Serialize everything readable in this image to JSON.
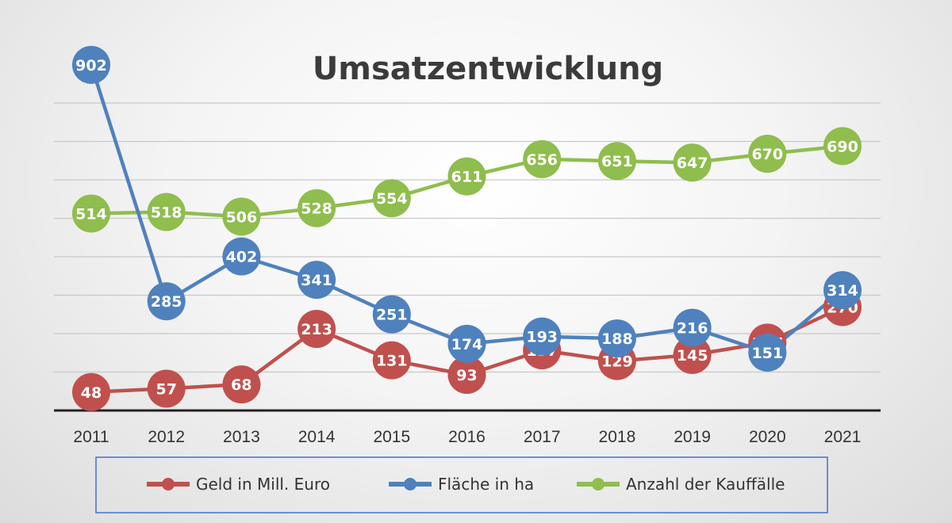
{
  "chart_data": {
    "type": "line",
    "title": "Umsatzentwicklung",
    "x": [
      "2011",
      "2012",
      "2013",
      "2014",
      "2015",
      "2016",
      "2017",
      "2018",
      "2019",
      "2020",
      "2021"
    ],
    "series": [
      {
        "name": "Geld in Mill. Euro",
        "color": "#c0504d",
        "values": [
          48,
          57,
          68,
          213,
          131,
          93,
          157,
          129,
          145,
          177,
          270
        ]
      },
      {
        "name": "Fläche in ha",
        "color": "#4f81bd",
        "values": [
          902,
          285,
          402,
          341,
          251,
          174,
          193,
          188,
          216,
          151,
          314
        ]
      },
      {
        "name": "Anzahl der Kauffälle",
        "color": "#8fbd4e",
        "values": [
          514,
          518,
          506,
          528,
          554,
          611,
          656,
          651,
          647,
          670,
          690
        ]
      }
    ],
    "grid": true,
    "data_labels": true,
    "legend_position": "bottom"
  }
}
